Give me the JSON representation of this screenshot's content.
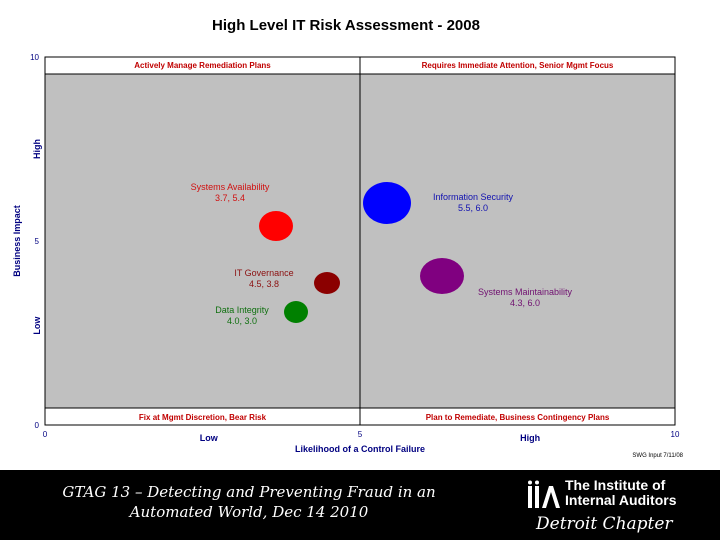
{
  "chart_data": {
    "type": "scatter",
    "title": "High Level IT Risk Assessment - 2008",
    "xlabel": "Likelihood of a Control Failure",
    "ylabel": "Business Impact",
    "xlim": [
      0,
      10
    ],
    "ylim": [
      0,
      10
    ],
    "x_ticks": [
      0,
      5,
      10
    ],
    "y_ticks": [
      0,
      5,
      10
    ],
    "x_qual_labels": [
      "Low",
      "High"
    ],
    "y_qual_labels": [
      "Low",
      "High"
    ],
    "grid": false,
    "plot_background": "#c0c0c0",
    "quadrant_labels": {
      "top_left": "Actively Manage Remediation Plans",
      "top_right": "Requires Immediate Attention, Senior Mgmt Focus",
      "bottom_left": "Fix at Mgmt Discretion, Bear Risk",
      "bottom_right": "Plan to Remediate, Business Contingency Plans"
    },
    "points": [
      {
        "name": "Systems Availability",
        "label_values": "3.7, 5.4",
        "x": 3.7,
        "y": 5.4,
        "color": "#ff0000",
        "label_color": "#d01010"
      },
      {
        "name": "Information Security",
        "label_values": "5.5, 6.0",
        "x": 5.5,
        "y": 6.0,
        "color": "#0000ff",
        "label_color": "#1010b0"
      },
      {
        "name": "IT Governance",
        "label_values": "4.5, 3.8",
        "x": 4.5,
        "y": 3.8,
        "color": "#8b0000",
        "label_color": "#8b1010"
      },
      {
        "name": "Systems Maintainability",
        "label_values": "4.3, 6.0",
        "x": 4.3,
        "y": 6.0,
        "color": "#800080",
        "label_color": "#701070"
      },
      {
        "name": "Data Integrity",
        "label_values": "4.0, 3.0",
        "x": 4.0,
        "y": 3.0,
        "color": "#008000",
        "label_color": "#107010"
      }
    ],
    "source_note": "SWG Input 7/11/08"
  },
  "footer": {
    "caption_line1": "GTAG 13 – Detecting and Preventing Fraud in an",
    "caption_line2": "Automated World, Dec 14 2010",
    "logo_mark": "IIA",
    "logo_line1": "The Institute of",
    "logo_line2": "Internal Auditors",
    "chapter": "Detroit Chapter"
  }
}
